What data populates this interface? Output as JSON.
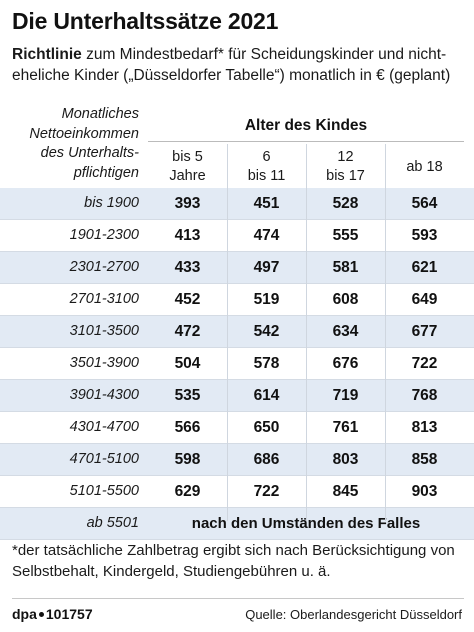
{
  "title": "Die Unterhaltssätze 2021",
  "subtitle": {
    "bold": "Richtlinie",
    "rest": " zum Mindestbedarf* für Scheidungskinder und nicht-eheliche Kinder („Düsseldorfer Tabelle“) monatlich in € (geplant)"
  },
  "header": {
    "left": [
      "Monatliches",
      "Nettoeinkommen",
      "des Unterhalts-",
      "pflichtigen"
    ],
    "group_title": "Alter des Kindes",
    "columns": [
      [
        "bis 5",
        "Jahre"
      ],
      [
        "6",
        "bis 11"
      ],
      [
        "12",
        "bis 17"
      ],
      [
        "ab 18"
      ]
    ]
  },
  "rows": [
    {
      "income": "bis 1900",
      "values": [
        "393",
        "451",
        "528",
        "564"
      ]
    },
    {
      "income": "1901-2300",
      "values": [
        "413",
        "474",
        "555",
        "593"
      ]
    },
    {
      "income": "2301-2700",
      "values": [
        "433",
        "497",
        "581",
        "621"
      ]
    },
    {
      "income": "2701-3100",
      "values": [
        "452",
        "519",
        "608",
        "649"
      ]
    },
    {
      "income": "3101-3500",
      "values": [
        "472",
        "542",
        "634",
        "677"
      ]
    },
    {
      "income": "3501-3900",
      "values": [
        "504",
        "578",
        "676",
        "722"
      ]
    },
    {
      "income": "3901-4300",
      "values": [
        "535",
        "614",
        "719",
        "768"
      ]
    },
    {
      "income": "4301-4700",
      "values": [
        "566",
        "650",
        "761",
        "813"
      ]
    },
    {
      "income": "4701-5100",
      "values": [
        "598",
        "686",
        "803",
        "858"
      ]
    },
    {
      "income": "5101-5500",
      "values": [
        "629",
        "722",
        "845",
        "903"
      ]
    }
  ],
  "last_row": {
    "income": "ab 5501",
    "text": "nach den Umständen des Falles"
  },
  "footnote": "*der tatsächliche Zahlbetrag ergibt sich nach Berücksichtigung von Selbstbehalt, Kindergeld, Studiengebühren u. ä.",
  "footer": {
    "logo_left": "dpa",
    "logo_right": "101757",
    "source": "Quelle: Oberlandesgericht Düsseldorf"
  },
  "colors": {
    "row_shade": "#e2eaf4",
    "row_border": "#d4dbe4"
  }
}
